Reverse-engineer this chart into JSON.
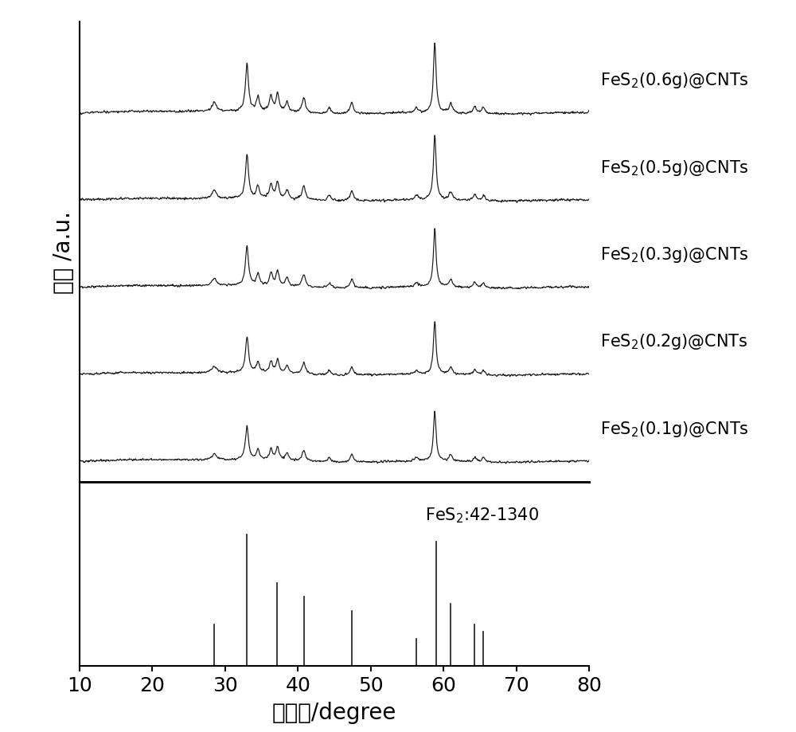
{
  "xlabel": "衍射角/degree",
  "ylabel": "強度 /a.u.",
  "xmin": 10,
  "xmax": 80,
  "xticks": [
    10,
    20,
    30,
    40,
    50,
    60,
    70,
    80
  ],
  "labels": [
    "FeS$_2$(0.1g)@CNTs",
    "FeS$_2$(0.2g)@CNTs",
    "FeS$_2$(0.3g)@CNTs",
    "FeS$_2$(0.5g)@CNTs",
    "FeS$_2$(0.6g)@CNTs"
  ],
  "ref_label": "FeS$_2$:42-1340",
  "ref_peaks": [
    28.5,
    33.0,
    37.1,
    40.8,
    47.4,
    56.3,
    59.0,
    61.0,
    64.3,
    65.5
  ],
  "ref_heights_ratio": [
    0.3,
    0.95,
    0.6,
    0.5,
    0.4,
    0.2,
    0.9,
    0.45,
    0.3,
    0.25
  ],
  "line_color": "#1a1a1a",
  "background_color": "#ffffff",
  "fontsize_label": 20,
  "fontsize_tick": 18,
  "fontsize_annotation": 15
}
